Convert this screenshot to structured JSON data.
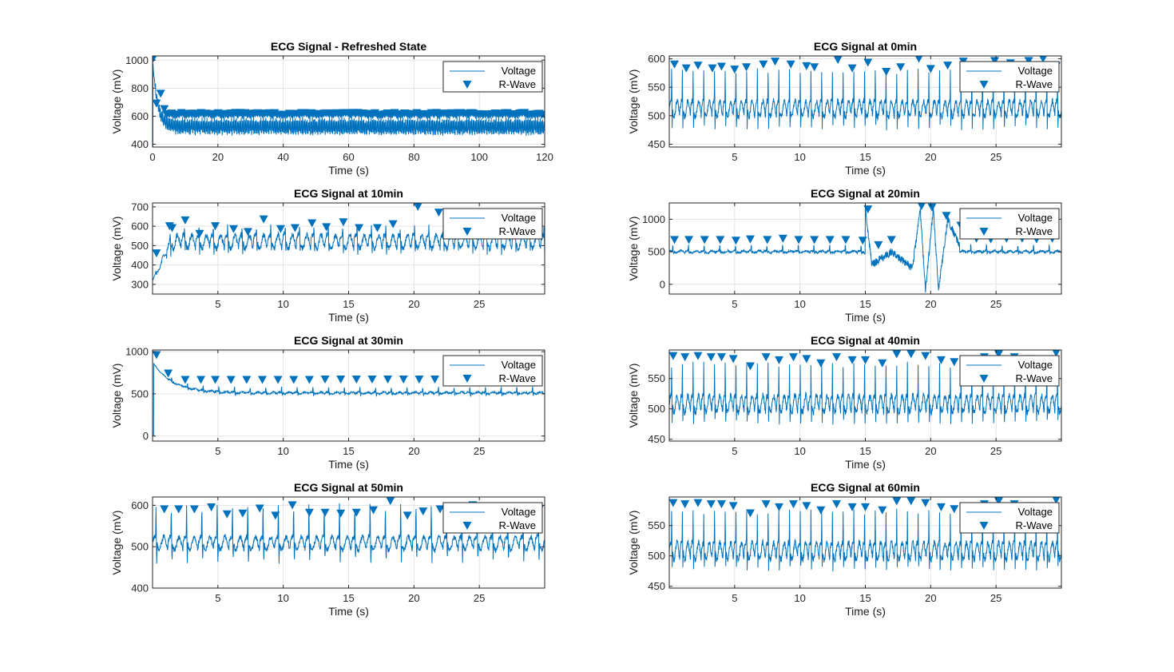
{
  "figure": {
    "rows": 4,
    "cols": 2
  },
  "colors": {
    "signal": "#0072BD",
    "grid": "#e3e3e3",
    "axis": "#262626"
  },
  "legend": {
    "voltage": "Voltage",
    "rwave": "R-Wave",
    "placement": "top-right"
  },
  "chart_data": [
    {
      "type": "line",
      "id": "refreshed",
      "title": "ECG Signal - Refreshed State",
      "xlabel": "Time (s)",
      "ylabel": "Voltage (mV)",
      "xlim": [
        0,
        120
      ],
      "ylim": [
        380,
        1030
      ],
      "xticks": [
        0,
        20,
        40,
        60,
        80,
        100,
        120
      ],
      "yticks": [
        400,
        600,
        800,
        1000
      ],
      "grid": true,
      "signal": {
        "duration": 120,
        "baseline": 520,
        "amp": 45,
        "noise": 12,
        "beat_interval": 0.75,
        "r_height": 85,
        "s_depth": 60,
        "start_spike": 1010,
        "decay": 1.5
      },
      "r_waves": {
        "interval": 0.75,
        "level": 615,
        "jitter": 8,
        "first": [
          [
            0.15,
            1010
          ],
          [
            1.2,
            690
          ],
          [
            2.5,
            760
          ],
          [
            3.6,
            650
          ]
        ]
      },
      "series": [
        {
          "name": "Voltage"
        },
        {
          "name": "R-Wave"
        }
      ]
    },
    {
      "type": "line",
      "id": "t0",
      "title": "ECG Signal at 0min",
      "xlabel": "Time (s)",
      "ylabel": "Voltage (mV)",
      "xlim": [
        0,
        30
      ],
      "ylim": [
        445,
        605
      ],
      "xticks": [
        5,
        10,
        15,
        20,
        25
      ],
      "yticks": [
        450,
        500,
        550,
        600
      ],
      "grid": true,
      "signal": {
        "duration": 30,
        "baseline": 512,
        "amp": 14,
        "noise": 5,
        "beat_interval": 0.82,
        "r_height": 72,
        "s_depth": 50
      },
      "r_waves": {
        "times": [
          0.4,
          1.3,
          2.2,
          3.3,
          4.0,
          5.0,
          5.9,
          7.2,
          8.1,
          9.3,
          10.5,
          11.1,
          12.9,
          14.0,
          15.2,
          16.6,
          17.7,
          19.1,
          20.0,
          21.3,
          22.5,
          23.6,
          24.9,
          26.1,
          27.5,
          28.6,
          29.6
        ],
        "values": [
          590,
          583,
          588,
          583,
          586,
          581,
          585,
          590,
          595,
          590,
          587,
          585,
          598,
          583,
          593,
          577,
          585,
          600,
          582,
          588,
          595,
          588,
          596,
          592,
          596,
          600,
          587
        ]
      },
      "series": [
        {
          "name": "Voltage"
        },
        {
          "name": "R-Wave"
        }
      ]
    },
    {
      "type": "line",
      "id": "t10",
      "title": "ECG Signal at 10min",
      "xlabel": "Time (s)",
      "ylabel": "Voltage (mV)",
      "xlim": [
        0,
        30
      ],
      "ylim": [
        250,
        720
      ],
      "xticks": [
        5,
        10,
        15,
        20,
        25
      ],
      "yticks": [
        300,
        400,
        500,
        600,
        700
      ],
      "grid": true,
      "signal": {
        "duration": 30,
        "baseline": 520,
        "amp": 35,
        "noise": 15,
        "beat_interval": 1.1,
        "r_height": 70,
        "s_depth": 70,
        "start_dip": 320
      },
      "r_waves": {
        "times": [
          0.3,
          1.3,
          1.5,
          2.5,
          3.6,
          4.8,
          6.2,
          7.3,
          8.5,
          9.8,
          10.9,
          12.2,
          13.3,
          14.6,
          15.8,
          17.2,
          18.4,
          20.3,
          21.9,
          23.2,
          24.5,
          25.7,
          27.1,
          28.4,
          29.5
        ],
        "values": [
          460,
          600,
          590,
          630,
          560,
          600,
          585,
          570,
          635,
          585,
          590,
          615,
          595,
          620,
          590,
          590,
          610,
          700,
          670,
          630,
          640,
          620,
          610,
          615,
          620
        ]
      },
      "series": [
        {
          "name": "Voltage"
        },
        {
          "name": "R-Wave"
        }
      ]
    },
    {
      "type": "line",
      "id": "t20",
      "title": "ECG Signal at 20min",
      "xlabel": "Time (s)",
      "ylabel": "Voltage (mV)",
      "xlim": [
        0,
        30
      ],
      "ylim": [
        -150,
        1250
      ],
      "xticks": [
        5,
        10,
        15,
        20,
        25
      ],
      "yticks": [
        0,
        500,
        1000
      ],
      "grid": true,
      "signal": {
        "duration": 30,
        "baseline": 500,
        "amp": 15,
        "noise": 15,
        "beat_interval": 1.2,
        "r_height": 120,
        "s_depth": 40,
        "artifact": [
          [
            15,
            1150
          ],
          [
            15.5,
            300
          ],
          [
            17.0,
            500
          ],
          [
            18.6,
            250
          ],
          [
            19.2,
            1150
          ],
          [
            19.6,
            -100
          ],
          [
            20.2,
            1150
          ],
          [
            20.6,
            -80
          ],
          [
            21.3,
            1000
          ],
          [
            22.2,
            600
          ]
        ]
      },
      "r_waves": {
        "times": [
          0.4,
          1.5,
          2.7,
          3.9,
          5.1,
          6.2,
          7.5,
          8.7,
          9.9,
          11.1,
          12.3,
          13.5,
          14.8,
          15.2,
          16.0,
          17.0,
          19.3,
          20.1,
          21.2,
          22.3,
          23.5,
          24.6,
          25.8,
          27.0,
          28.1,
          29.3
        ],
        "values": [
          680,
          680,
          680,
          680,
          670,
          690,
          680,
          700,
          680,
          680,
          680,
          680,
          670,
          1150,
          600,
          680,
          1200,
          1180,
          1050,
          900,
          700,
          690,
          700,
          700,
          690,
          700
        ]
      },
      "series": [
        {
          "name": "Voltage"
        },
        {
          "name": "R-Wave"
        }
      ]
    },
    {
      "type": "line",
      "id": "t30",
      "title": "ECG Signal at 30min",
      "xlabel": "Time (s)",
      "ylabel": "Voltage (mV)",
      "xlim": [
        0,
        30
      ],
      "ylim": [
        -60,
        1020
      ],
      "xticks": [
        5,
        10,
        15,
        20,
        25
      ],
      "yticks": [
        0,
        500,
        1000
      ],
      "grid": true,
      "signal": {
        "duration": 30,
        "baseline": 510,
        "amp": 10,
        "noise": 10,
        "beat_interval": 1.2,
        "r_height": 80,
        "s_depth": 40,
        "start_spike": 880,
        "decay": 1.5
      },
      "r_waves": {
        "times": [
          0.3,
          1.2,
          2.5,
          3.7,
          4.8,
          6.0,
          7.2,
          8.4,
          9.6,
          10.8,
          12.0,
          13.2,
          14.4,
          15.6,
          16.8,
          18.0,
          19.2,
          20.4,
          21.6,
          22.8,
          24.0,
          25.2,
          26.4,
          27.6,
          28.8
        ],
        "values": [
          960,
          740,
          665,
          665,
          665,
          665,
          665,
          665,
          665,
          665,
          665,
          670,
          670,
          670,
          670,
          670,
          670,
          670,
          670,
          670,
          670,
          670,
          670,
          670,
          670
        ]
      },
      "series": [
        {
          "name": "Voltage"
        },
        {
          "name": "R-Wave"
        }
      ]
    },
    {
      "type": "line",
      "id": "t40",
      "title": "ECG Signal at 40min",
      "xlabel": "Time (s)",
      "ylabel": "Voltage (mV)",
      "xlim": [
        0,
        30
      ],
      "ylim": [
        447,
        597
      ],
      "xticks": [
        5,
        10,
        15,
        20,
        25
      ],
      "yticks": [
        450,
        500,
        550
      ],
      "grid": true,
      "signal": {
        "duration": 30,
        "baseline": 508,
        "amp": 14,
        "noise": 5,
        "beat_interval": 0.82,
        "r_height": 70,
        "s_depth": 45
      },
      "r_waves": {
        "times": [
          0.3,
          1.2,
          2.2,
          3.2,
          4.0,
          4.9,
          6.2,
          7.4,
          8.4,
          9.5,
          10.5,
          11.6,
          12.8,
          14.0,
          15.0,
          16.3,
          17.4,
          18.5,
          19.6,
          20.8,
          21.8,
          23.0,
          24.1,
          25.2,
          26.4,
          27.6,
          28.8,
          29.6
        ],
        "values": [
          587,
          585,
          587,
          585,
          585,
          582,
          570,
          585,
          580,
          585,
          582,
          575,
          585,
          580,
          580,
          575,
          590,
          590,
          587,
          580,
          577,
          580,
          585,
          590,
          585,
          582,
          580,
          592
        ]
      },
      "series": [
        {
          "name": "Voltage"
        },
        {
          "name": "R-Wave"
        }
      ]
    },
    {
      "type": "line",
      "id": "t50",
      "title": "ECG Signal at 50min",
      "xlabel": "Time (s)",
      "ylabel": "Voltage (mV)",
      "xlim": [
        0,
        30
      ],
      "ylim": [
        400,
        620
      ],
      "xticks": [
        5,
        10,
        15,
        20,
        25
      ],
      "yticks": [
        400,
        500,
        600
      ],
      "grid": true,
      "signal": {
        "duration": 30,
        "baseline": 508,
        "amp": 16,
        "noise": 6,
        "beat_interval": 1.17,
        "r_height": 90,
        "s_depth": 50
      },
      "r_waves": {
        "times": [
          0.9,
          2.0,
          3.2,
          4.5,
          5.7,
          6.9,
          8.2,
          9.4,
          10.7,
          12.0,
          13.2,
          14.4,
          15.6,
          16.9,
          18.2,
          19.5,
          20.7,
          22.0,
          23.3,
          24.5,
          25.8,
          27.0,
          28.3,
          29.6
        ],
        "values": [
          590,
          590,
          590,
          595,
          578,
          580,
          592,
          575,
          600,
          582,
          582,
          580,
          582,
          588,
          610,
          575,
          585,
          590,
          595,
          600,
          590,
          585,
          590,
          590
        ]
      },
      "series": [
        {
          "name": "Voltage"
        },
        {
          "name": "R-Wave"
        }
      ]
    },
    {
      "type": "line",
      "id": "t60",
      "title": "ECG Signal at 60min",
      "xlabel": "Time (s)",
      "ylabel": "Voltage (mV)",
      "xlim": [
        0,
        30
      ],
      "ylim": [
        447,
        597
      ],
      "xticks": [
        5,
        10,
        15,
        20,
        25
      ],
      "yticks": [
        450,
        500,
        550
      ],
      "grid": true,
      "signal": {
        "duration": 30,
        "baseline": 508,
        "amp": 14,
        "noise": 5,
        "beat_interval": 0.82,
        "r_height": 70,
        "s_depth": 45
      },
      "r_waves": {
        "times": [
          0.3,
          1.2,
          2.2,
          3.2,
          4.0,
          4.9,
          6.2,
          7.4,
          8.4,
          9.5,
          10.5,
          11.6,
          12.8,
          14.0,
          15.0,
          16.3,
          17.4,
          18.5,
          19.6,
          20.8,
          21.8,
          23.0,
          24.1,
          25.2,
          26.4,
          27.6,
          28.8,
          29.6
        ],
        "values": [
          587,
          585,
          587,
          585,
          585,
          582,
          570,
          585,
          580,
          585,
          582,
          575,
          585,
          580,
          580,
          575,
          590,
          590,
          587,
          580,
          577,
          580,
          585,
          590,
          585,
          582,
          580,
          592
        ]
      },
      "series": [
        {
          "name": "Voltage"
        },
        {
          "name": "R-Wave"
        }
      ]
    }
  ]
}
